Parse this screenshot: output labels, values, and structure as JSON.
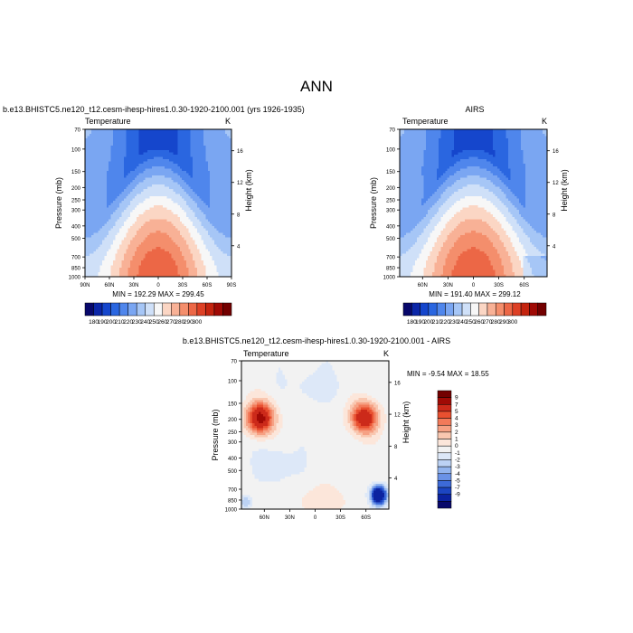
{
  "page_title": "ANN",
  "panels": [
    {
      "id": "model",
      "header": "b.e13.BHISTC5.ne120_t12.cesm-ihesp-hires1.0.30-1920-2100.001 (yrs 1926-1935)",
      "left_label": "Temperature",
      "unit_label": "K",
      "minmax": "MIN = 192.29   MAX = 299.45"
    },
    {
      "id": "obs",
      "header": "AIRS",
      "left_label": "Temperature",
      "unit_label": "K",
      "minmax": "MIN = 191.40   MAX = 299.12"
    },
    {
      "id": "diff",
      "header": "b.e13.BHISTC5.ne120_t12.cesm-ihesp-hires1.0.30-1920-2100.001 - AIRS",
      "left_label": "Temperature",
      "unit_label": "K",
      "minmax": "MIN =  -9.54   MAX =  18.55"
    }
  ],
  "axes": {
    "ylabel": "Pressure (mb)",
    "y2label": "Height (km)",
    "pressure_ticks": [
      "70",
      "100",
      "150",
      "200",
      "250",
      "300",
      "400",
      "500",
      "700",
      "850",
      "1000"
    ],
    "height_ticks": [
      "16",
      "12",
      "8",
      "4"
    ],
    "lat_ticks_model": [
      "90N",
      "60N",
      "30N",
      "0",
      "30S",
      "60S",
      "90S"
    ],
    "lat_ticks_obs": [
      "60N",
      "30N",
      "0",
      "30S",
      "60S"
    ],
    "lat_ticks_diff": [
      "60N",
      "30N",
      "0",
      "30S",
      "60S"
    ]
  },
  "colorbars": {
    "temp_labels": [
      "180",
      "190",
      "200",
      "210",
      "220",
      "230",
      "240",
      "250",
      "260",
      "270",
      "280",
      "290",
      "300"
    ],
    "temp_colors": [
      "#08086b",
      "#0b26a8",
      "#1546cc",
      "#2a66e0",
      "#4f86ec",
      "#7aa6f2",
      "#a6c6f6",
      "#cfe0f8",
      "#f7f7f7",
      "#fbd6c4",
      "#f8b196",
      "#f48e6c",
      "#ec6746",
      "#dd4025",
      "#c4240f",
      "#a00a05",
      "#730000"
    ],
    "diff_labels": [
      "9",
      "7",
      "5",
      "4",
      "3",
      "2",
      "1",
      "0",
      "-1",
      "-2",
      "-3",
      "-4",
      "-5",
      "-7",
      "-9"
    ],
    "diff_colors": [
      "#730000",
      "#a00a05",
      "#cc2a1a",
      "#e85030",
      "#f27a5a",
      "#f6a184",
      "#f9c7b0",
      "#fce6da",
      "#f2f2f2",
      "#dde8f8",
      "#bcd2f4",
      "#92b4ee",
      "#6a92e6",
      "#3d6ad8",
      "#1c45c2",
      "#0b22a0",
      "#08086b"
    ]
  },
  "chart_data": [
    {
      "type": "heatmap",
      "title": "b.e13.BHISTC5.ne120_t12.cesm-ihesp-hires1.0.30-1920-2100.001 (yrs 1926-1935)",
      "xlabel": "",
      "ylabel": "Pressure (mb)",
      "y2label": "Height (km)",
      "x_range": [
        "90N",
        "90S"
      ],
      "y_range": [
        70,
        1000
      ],
      "y_scale": "log",
      "min": 192.29,
      "max": 299.45,
      "levels": [
        180,
        190,
        200,
        210,
        220,
        230,
        240,
        250,
        260,
        270,
        280,
        290,
        300
      ]
    },
    {
      "type": "heatmap",
      "title": "AIRS",
      "xlabel": "",
      "ylabel": "Pressure (mb)",
      "y2label": "Height (km)",
      "x_range": [
        "90N",
        "90S"
      ],
      "y_range": [
        70,
        1000
      ],
      "y_scale": "log",
      "min": 191.4,
      "max": 299.12,
      "levels": [
        180,
        190,
        200,
        210,
        220,
        230,
        240,
        250,
        260,
        270,
        280,
        290,
        300
      ]
    },
    {
      "type": "heatmap",
      "title": "b.e13.BHISTC5.ne120_t12.cesm-ihesp-hires1.0.30-1920-2100.001 - AIRS",
      "xlabel": "",
      "ylabel": "Pressure (mb)",
      "y2label": "Height (km)",
      "x_range": [
        "90N",
        "90S"
      ],
      "y_range": [
        70,
        1000
      ],
      "y_scale": "log",
      "min": -9.54,
      "max": 18.55,
      "levels": [
        -9,
        -7,
        -5,
        -4,
        -3,
        -2,
        -1,
        0,
        1,
        2,
        3,
        4,
        5,
        7,
        9
      ]
    }
  ]
}
